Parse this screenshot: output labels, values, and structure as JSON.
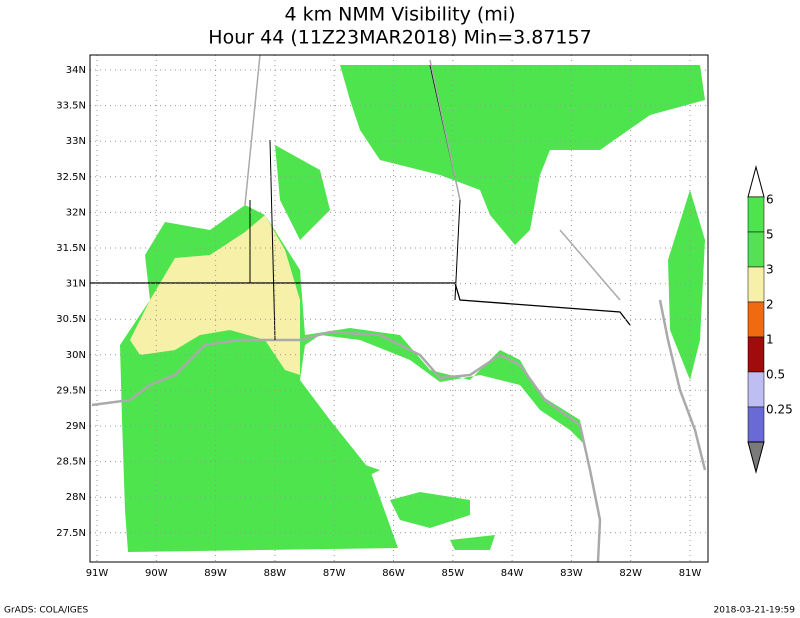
{
  "title": [
    "4 km NMM Visibility (mi)",
    "Hour 44 (11Z23MAR2018) Min=3.87157"
  ],
  "lat_labels": [
    "34N",
    "33.5N",
    "33N",
    "32.5N",
    "32N",
    "31.5N",
    "31N",
    "30.5N",
    "30N",
    "29.5N",
    "29N",
    "28.5N",
    "28N",
    "27.5N"
  ],
  "lon_labels": [
    "91W",
    "90W",
    "89W",
    "88W",
    "87W",
    "86W",
    "85W",
    "84W",
    "83W",
    "82W",
    "81W"
  ],
  "colorbar": {
    "labels": [
      "6",
      "5",
      "3",
      "2",
      "1",
      "0.5",
      "0.25"
    ],
    "colors": [
      "#ffffff",
      "#4ee44e",
      "#55e055",
      "#f7f0a8",
      "#f06a10",
      "#a00c0c",
      "#bebef2",
      "#6a6ad6",
      "#7a7a7a"
    ]
  },
  "footer": {
    "left": "GrADS: COLA/IGES",
    "right": "2018-03-21-19:59"
  }
}
